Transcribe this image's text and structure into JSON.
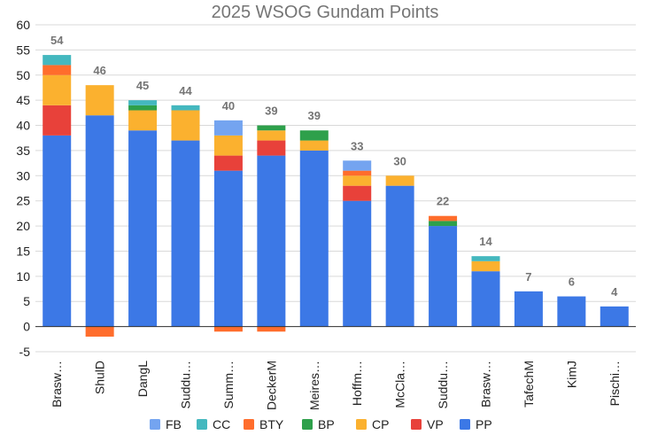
{
  "chart_data": {
    "type": "bar",
    "stacked": true,
    "title": "2025 WSOG Gundam Points",
    "xlabel": "",
    "ylabel": "",
    "ylim": [
      -5,
      60
    ],
    "yticks": [
      -5,
      0,
      5,
      10,
      15,
      20,
      25,
      30,
      35,
      40,
      45,
      50,
      55,
      60
    ],
    "grid": true,
    "legend_position": "bottom",
    "categories": [
      "Brasw…",
      "ShulD",
      "DangL",
      "Suddu…",
      "Summ…",
      "DeckerM",
      "Meires…",
      "Hoffm…",
      "McCla…",
      "Suddu…",
      "Brasw…",
      "TafechM",
      "KimJ",
      "Pischi…"
    ],
    "totals": [
      "54",
      "46",
      "45",
      "44",
      "40",
      "39",
      "39",
      "33",
      "30",
      "22",
      "14",
      "7",
      "6",
      "4"
    ],
    "series": [
      {
        "name": "PP",
        "color": "#3c78e6",
        "values": [
          38,
          42,
          39,
          37,
          31,
          34,
          35,
          25,
          28,
          20,
          11,
          7,
          6,
          4
        ]
      },
      {
        "name": "VP",
        "color": "#e8413a",
        "values": [
          6,
          0,
          0,
          0,
          3,
          3,
          0,
          3,
          0,
          0,
          0,
          0,
          0,
          0
        ]
      },
      {
        "name": "CP",
        "color": "#fbb12f",
        "values": [
          6,
          6,
          4,
          6,
          4,
          2,
          2,
          2,
          2,
          0,
          2,
          0,
          0,
          0
        ]
      },
      {
        "name": "BP",
        "color": "#2ea04b",
        "values": [
          0,
          0,
          1,
          0,
          0,
          1,
          2,
          0,
          0,
          1,
          0,
          0,
          0,
          0
        ]
      },
      {
        "name": "BTY",
        "color": "#ff6d2c",
        "values": [
          2,
          -2,
          0,
          0,
          -1,
          -1,
          0,
          1,
          0,
          1,
          0,
          0,
          0,
          0
        ]
      },
      {
        "name": "CC",
        "color": "#44b8bf",
        "values": [
          2,
          0,
          1,
          1,
          0,
          0,
          0,
          0,
          0,
          0,
          1,
          0,
          0,
          0
        ]
      },
      {
        "name": "FB",
        "color": "#74a4f0",
        "values": [
          0,
          0,
          0,
          0,
          3,
          0,
          0,
          2,
          0,
          0,
          0,
          0,
          0,
          0
        ]
      }
    ],
    "legend_order": [
      "FB",
      "CC",
      "BTY",
      "BP",
      "CP",
      "VP",
      "PP"
    ],
    "colors": {
      "grid": "#d9d9d9",
      "zero_line": "#333333",
      "total_label": "#757575"
    }
  }
}
